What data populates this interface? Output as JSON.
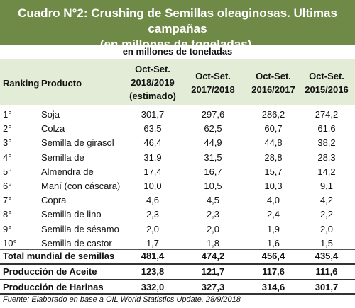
{
  "title_line1": "Cuadro N°2: Crushing de Semillas oleaginosas. Ultimas campañas",
  "title_line2": "(en millones de toneladas).",
  "subtitle": "en millones de toneladas",
  "headers": {
    "ranking": "Ranking",
    "producto": "Producto",
    "c1": [
      "Oct-Set.",
      "2018/2019",
      "(estimado)"
    ],
    "c2": [
      "Oct-Set.",
      "2017/2018"
    ],
    "c3": [
      "Oct-Set.",
      "2016/2017"
    ],
    "c4": [
      "Oct-Set.",
      "2015/2016"
    ]
  },
  "rows": [
    {
      "rank": "1°",
      "product": "Soja",
      "values": [
        "301,7",
        "297,6",
        "286,2",
        "274,2"
      ]
    },
    {
      "rank": "2°",
      "product": "Colza",
      "values": [
        "63,5",
        "62,5",
        "60,7",
        "61,6"
      ]
    },
    {
      "rank": "3°",
      "product": "Semilla de girasol",
      "values": [
        "46,4",
        "44,9",
        "44,8",
        "38,2"
      ]
    },
    {
      "rank": "4°",
      "product": "Semilla de",
      "values": [
        "31,9",
        "31,5",
        "28,8",
        "28,3"
      ]
    },
    {
      "rank": "5°",
      "product": "Almendra de",
      "values": [
        "17,4",
        "16,7",
        "15,7",
        "14,2"
      ]
    },
    {
      "rank": "6°",
      "product": "Maní (con cáscara)",
      "values": [
        "10,0",
        "10,5",
        "10,3",
        "9,1"
      ]
    },
    {
      "rank": "7°",
      "product": "Copra",
      "values": [
        "4,6",
        "4,5",
        "4,0",
        "4,2"
      ]
    },
    {
      "rank": "8°",
      "product": "Semilla de lino",
      "values": [
        "2,3",
        "2,3",
        "2,4",
        "2,2"
      ]
    },
    {
      "rank": "9°",
      "product": "Semilla de sésamo",
      "values": [
        "2,0",
        "2,0",
        "1,9",
        "2,0"
      ]
    },
    {
      "rank": "10°",
      "product": "Semilla de castor",
      "values": [
        "1,7",
        "1,8",
        "1,6",
        "1,5"
      ]
    }
  ],
  "totals": [
    {
      "label": "Total mundial de semillas",
      "values": [
        "481,4",
        "474,2",
        "456,4",
        "435,4"
      ]
    },
    {
      "label": "Producción de Aceite",
      "values": [
        "123,8",
        "121,7",
        "117,6",
        "111,6"
      ]
    },
    {
      "label": "Producción de Harinas",
      "values": [
        "332,0",
        "327,3",
        "314,6",
        "301,7"
      ]
    }
  ],
  "source": "Fuente: Elaborado en base a OIL World Statistics Update. 28/9/2018"
}
